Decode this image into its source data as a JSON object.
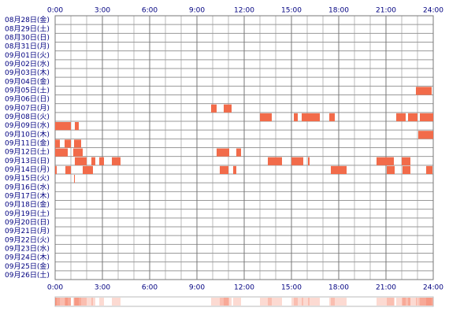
{
  "chart_data": {
    "type": "timeline",
    "categories": [
      "08月28日(金)",
      "08月29日(土)",
      "08月30日(日)",
      "08月31日(月)",
      "09月01日(火)",
      "09月02日(水)",
      "09月03日(木)",
      "09月04日(金)",
      "09月05日(土)",
      "09月06日(日)",
      "09月07日(月)",
      "09月08日(火)",
      "09月09日(水)",
      "09月10日(木)",
      "09月11日(金)",
      "09月12日(土)",
      "09月13日(日)",
      "09月14日(月)",
      "09月15日(火)",
      "09月16日(水)",
      "09月17日(木)",
      "09月18日(金)",
      "09月19日(土)",
      "09月20日(日)",
      "09月21日(月)",
      "09月22日(火)",
      "09月23日(水)",
      "09月24日(木)",
      "09月25日(金)",
      "09月26日(土)"
    ],
    "segments": [
      [],
      [],
      [],
      [],
      [],
      [],
      [],
      [],
      [
        [
          22.9,
          23.9
        ]
      ],
      [],
      [
        [
          9.9,
          10.25
        ],
        [
          10.7,
          11.2
        ]
      ],
      [
        [
          13.0,
          13.75
        ],
        [
          15.15,
          15.4
        ],
        [
          15.65,
          16.8
        ],
        [
          17.4,
          17.75
        ],
        [
          21.65,
          22.25
        ],
        [
          22.4,
          23.0
        ],
        [
          23.15,
          24
        ]
      ],
      [
        [
          0,
          1.0
        ],
        [
          1.25,
          1.5
        ]
      ],
      [
        [
          23.05,
          24
        ]
      ],
      [
        [
          0,
          0.3
        ],
        [
          0.6,
          1.0
        ],
        [
          1.2,
          1.65
        ]
      ],
      [
        [
          0,
          0.8
        ],
        [
          1.15,
          1.75
        ],
        [
          10.25,
          11.05
        ],
        [
          11.5,
          11.8
        ]
      ],
      [
        [
          1.25,
          2.0
        ],
        [
          2.3,
          2.55
        ],
        [
          2.8,
          3.1
        ],
        [
          3.6,
          4.15
        ],
        [
          13.5,
          14.4
        ],
        [
          15.0,
          15.75
        ],
        [
          16.05,
          16.15
        ],
        [
          20.4,
          21.5
        ],
        [
          22.0,
          22.55
        ]
      ],
      [
        [
          0,
          0.1
        ],
        [
          0.65,
          1.0
        ],
        [
          1.75,
          2.4
        ],
        [
          10.45,
          11.0
        ],
        [
          11.3,
          11.5
        ],
        [
          17.5,
          18.5
        ],
        [
          21.05,
          21.55
        ],
        [
          22.05,
          22.55
        ],
        [
          23.55,
          23.95
        ]
      ],
      [
        [
          1.2,
          1.25
        ]
      ],
      [],
      [],
      [],
      [],
      [],
      [],
      [],
      [],
      [],
      [],
      []
    ],
    "color": "#f26b4a",
    "xlim": [
      0,
      24
    ],
    "xticks": [
      {
        "value": 0,
        "label": "0:00"
      },
      {
        "value": 3,
        "label": "3:00"
      },
      {
        "value": 6,
        "label": "6:00"
      },
      {
        "value": 9,
        "label": "9:00"
      },
      {
        "value": 12,
        "label": "12:00"
      },
      {
        "value": 15,
        "label": "15:00"
      },
      {
        "value": 18,
        "label": "18:00"
      },
      {
        "value": 21,
        "label": "21:00"
      },
      {
        "value": 24,
        "label": "24:00"
      }
    ],
    "grid": true
  }
}
